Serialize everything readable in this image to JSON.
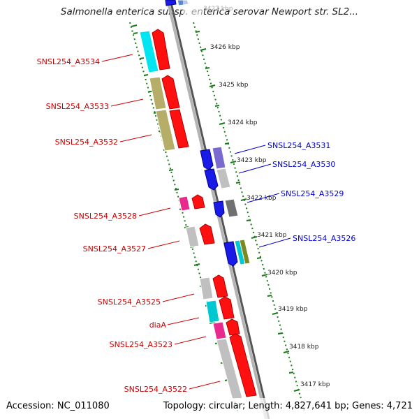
{
  "title": "Salmonella enterica subsp. enterica serovar Newport str. SL2...",
  "accession": "Accession: NC_011080",
  "topology": "Topology: circular; Length: 4,827,641 bp; Genes: 4,721",
  "colors": {
    "forward_label": "#cc0000",
    "reverse_label": "#0000cc",
    "ruler_dots": "#1a7a1a",
    "backbone": "#888888"
  },
  "ruler_labels": [
    "3427 kbp",
    "3426 kbp",
    "3425 kbp",
    "3424 kbp",
    "3423 kbp",
    "3422 kbp",
    "3421 kbp",
    "3420 kbp",
    "3419 kbp",
    "3418 kbp",
    "3417 kbp"
  ],
  "forward_gene_labels": [
    "SNSL254_A3534",
    "SNSL254_A3533",
    "SNSL254_A3532",
    "SNSL254_A3528",
    "SNSL254_A3527",
    "SNSL254_A3525",
    "diaA",
    "SNSL254_A3523",
    "SNSL254_A3522"
  ],
  "reverse_gene_labels": [
    "SNSL254_A3531",
    "SNSL254_A3530",
    "SNSL254_A3529",
    "SNSL254_A3526"
  ]
}
